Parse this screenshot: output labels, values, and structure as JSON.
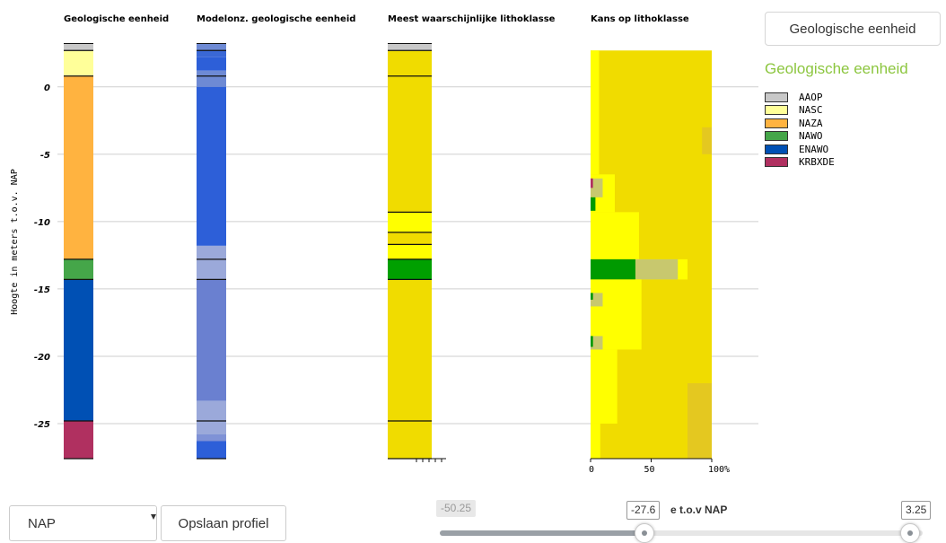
{
  "chart_data": {
    "type": "bar",
    "ylabel": "Hoogte in meters t.o.v. NAP",
    "ylim": [
      -27.6,
      3.25
    ],
    "yticks": [
      0,
      -5,
      -10,
      -15,
      -20,
      -25
    ],
    "columns": [
      {
        "title": "Geologische eenheid",
        "layers": [
          {
            "top": 3.25,
            "bottom": 2.7,
            "color": "#c8c8c8",
            "border": "#444"
          },
          {
            "top": 2.7,
            "bottom": 0.8,
            "color": "#ffff99"
          },
          {
            "top": 0.8,
            "bottom": -12.8,
            "color": "#ffb340"
          },
          {
            "top": -12.8,
            "bottom": -14.3,
            "color": "#45a649"
          },
          {
            "top": -14.3,
            "bottom": -24.8,
            "color": "#0050b4"
          },
          {
            "top": -24.8,
            "bottom": -27.6,
            "color": "#b03060"
          }
        ],
        "lines": [
          2.7,
          0.8,
          -12.8,
          -14.3,
          -24.8,
          -27.6
        ]
      },
      {
        "title": "Modelonz. geologische eenheid",
        "layers": [
          {
            "top": 3.25,
            "bottom": 2.7,
            "color": "#6e8ad4"
          },
          {
            "top": 2.7,
            "bottom": 2.2,
            "color": "#3a68d6"
          },
          {
            "top": 2.2,
            "bottom": 1.2,
            "color": "#2d5fd8"
          },
          {
            "top": 1.2,
            "bottom": 0.0,
            "color": "#6e8ad4"
          },
          {
            "top": 0.0,
            "bottom": -11.8,
            "color": "#2d5fd8"
          },
          {
            "top": -11.8,
            "bottom": -14.3,
            "color": "#9ba9da"
          },
          {
            "top": -14.3,
            "bottom": -23.3,
            "color": "#6a80d0"
          },
          {
            "top": -23.3,
            "bottom": -25.8,
            "color": "#9ba9da"
          },
          {
            "top": -25.8,
            "bottom": -26.3,
            "color": "#7f92d6"
          },
          {
            "top": -26.3,
            "bottom": -27.6,
            "color": "#2d5fd8"
          }
        ],
        "lines": [
          2.7,
          0.8,
          -12.8,
          -14.3,
          -24.8,
          -27.6
        ]
      },
      {
        "title": "Meest waarschijnlijke lithoklasse",
        "layers": [
          {
            "top": 3.25,
            "bottom": 2.7,
            "color": "#c8c8c8"
          },
          {
            "top": 2.7,
            "bottom": -9.3,
            "color": "#f0dc00"
          },
          {
            "top": -9.3,
            "bottom": -10.8,
            "color": "#ffff00"
          },
          {
            "top": -10.8,
            "bottom": -11.7,
            "color": "#f0dc00"
          },
          {
            "top": -11.7,
            "bottom": -12.8,
            "color": "#ffff00"
          },
          {
            "top": -12.8,
            "bottom": -14.3,
            "color": "#00a000"
          },
          {
            "top": -14.3,
            "bottom": -27.6,
            "color": "#f0dc00"
          }
        ],
        "lines": [
          2.7,
          0.8,
          -9.3,
          -10.8,
          -11.7,
          -12.8,
          -14.3,
          -24.8,
          -27.6
        ]
      }
    ],
    "probability_column": {
      "title": "Kans op lithoklasse",
      "xticks": [
        "0",
        "50",
        "100%"
      ],
      "base_color": "#f0dc00",
      "bands": [
        {
          "top": 2.7,
          "bottom": -6.5,
          "color": "#ffff00",
          "to": 7
        },
        {
          "top": -6.5,
          "bottom": -9.3,
          "color": "#ffff00",
          "to": 20
        },
        {
          "top": -9.3,
          "bottom": -12.8,
          "color": "#ffff00",
          "to": 40
        },
        {
          "top": -12.8,
          "bottom": -14.3,
          "color": "#ffff00",
          "to": 80
        },
        {
          "top": -12.8,
          "bottom": -14.3,
          "color": "#c8c86e",
          "from": 37,
          "to": 72
        },
        {
          "top": -12.8,
          "bottom": -14.3,
          "color": "#009a00",
          "to": 37
        },
        {
          "top": -14.3,
          "bottom": -19.5,
          "color": "#ffff00",
          "to": 42
        },
        {
          "top": -19.5,
          "bottom": -25.0,
          "color": "#ffff00",
          "to": 22
        },
        {
          "top": -25.0,
          "bottom": -27.6,
          "color": "#ffff00",
          "to": 8
        },
        {
          "top": -6.8,
          "bottom": -8.2,
          "color": "#c8c86e",
          "to": 10
        },
        {
          "top": -8.2,
          "bottom": -9.2,
          "color": "#009a00",
          "to": 4
        },
        {
          "top": -6.8,
          "bottom": -7.5,
          "color": "#b03060",
          "to": 2
        },
        {
          "top": -15.3,
          "bottom": -16.3,
          "color": "#c8c86e",
          "to": 10
        },
        {
          "top": -15.3,
          "bottom": -15.8,
          "color": "#009a00",
          "to": 2
        },
        {
          "top": -18.5,
          "bottom": -19.5,
          "color": "#c8c86e",
          "to": 10
        },
        {
          "top": -18.5,
          "bottom": -19.3,
          "color": "#009a00",
          "to": 2
        },
        {
          "top": -22.0,
          "bottom": -27.6,
          "color": "#e4c820",
          "from": 80,
          "to": 100
        },
        {
          "top": -3.0,
          "bottom": -5.0,
          "color": "#e4c820",
          "from": 92,
          "to": 100
        }
      ]
    }
  },
  "controls": {
    "legend_button": "Geologische eenheid",
    "legend_title": "Geologische eenheid",
    "legend": [
      {
        "label": "AAOP",
        "color": "#c8c8c8"
      },
      {
        "label": "NASC",
        "color": "#ffff99"
      },
      {
        "label": "NAZA",
        "color": "#ffb340"
      },
      {
        "label": "NAWO",
        "color": "#45a649"
      },
      {
        "label": "ENAWO",
        "color": "#0050b4"
      },
      {
        "label": "KRBXDE",
        "color": "#b03060"
      }
    ],
    "reference_select": "NAP",
    "save_button": "Opslaan profiel",
    "slider": {
      "min": "-50.25",
      "current": "-27.6",
      "label": "e t.o.v NAP",
      "max": "3.25",
      "min_value": -50.25,
      "current_value": -27.6,
      "max_value": 3.25
    }
  }
}
